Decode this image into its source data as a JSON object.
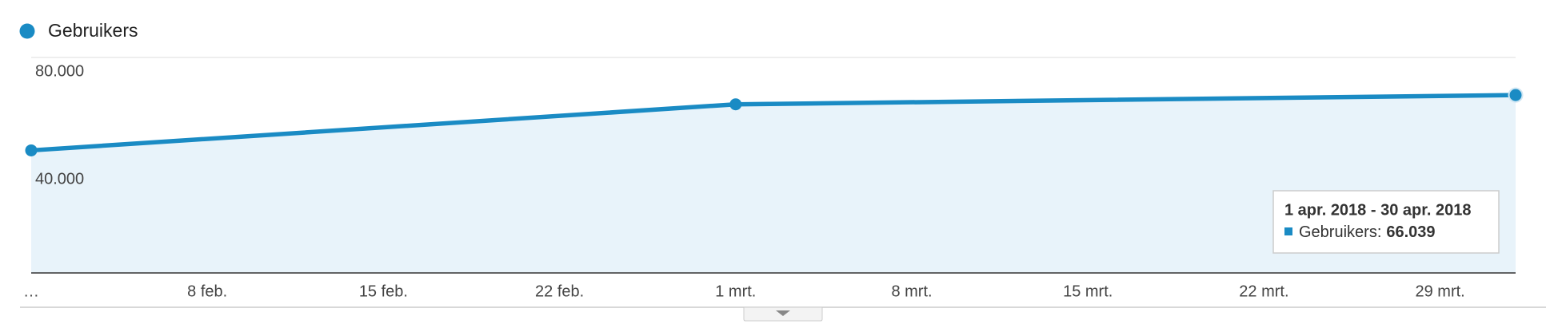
{
  "chart_data": {
    "type": "line",
    "x": [
      0,
      28,
      59
    ],
    "xlim": [
      0,
      59
    ],
    "xticks": [
      {
        "value": 0,
        "label": "…"
      },
      {
        "value": 7,
        "label": "8 feb."
      },
      {
        "value": 14,
        "label": "15 feb."
      },
      {
        "value": 21,
        "label": "22 feb."
      },
      {
        "value": 28,
        "label": "1 mrt."
      },
      {
        "value": 35,
        "label": "8 mrt."
      },
      {
        "value": 42,
        "label": "15 mrt."
      },
      {
        "value": 49,
        "label": "22 mrt."
      },
      {
        "value": 56,
        "label": "29 mrt."
      }
    ],
    "ylim": [
      0,
      80000
    ],
    "yticks": [
      {
        "value": 80000,
        "label": "80.000"
      },
      {
        "value": 40000,
        "label": "40.000"
      }
    ],
    "grid": true,
    "series": [
      {
        "name": "Gebruikers",
        "color": "#1a8bc4",
        "area_color": "#e8f3fa",
        "values": [
          45500,
          62600,
          66039
        ]
      }
    ],
    "tooltip": {
      "title": "1 apr. 2018 - 30 apr. 2018",
      "series_label": "Gebruikers:",
      "value_label": "66.039"
    }
  }
}
